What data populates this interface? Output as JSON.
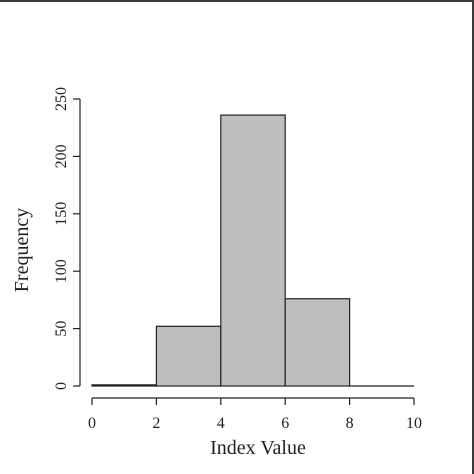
{
  "chart_data": {
    "type": "bar",
    "bins": [
      [
        0,
        2
      ],
      [
        2,
        4
      ],
      [
        4,
        6
      ],
      [
        6,
        8
      ],
      [
        8,
        10
      ]
    ],
    "values": [
      1,
      52,
      236,
      76,
      0
    ],
    "xlabel": "Index Value",
    "ylabel": "Frequency",
    "xlim": [
      0,
      10
    ],
    "ylim": [
      0,
      250
    ],
    "xticks": [
      "0",
      "2",
      "4",
      "6",
      "8",
      "10"
    ],
    "yticks": [
      "0",
      "50",
      "100",
      "150",
      "200",
      "250"
    ],
    "grid": false,
    "bar_color": "#bebebe",
    "edge_color": "#222222"
  }
}
